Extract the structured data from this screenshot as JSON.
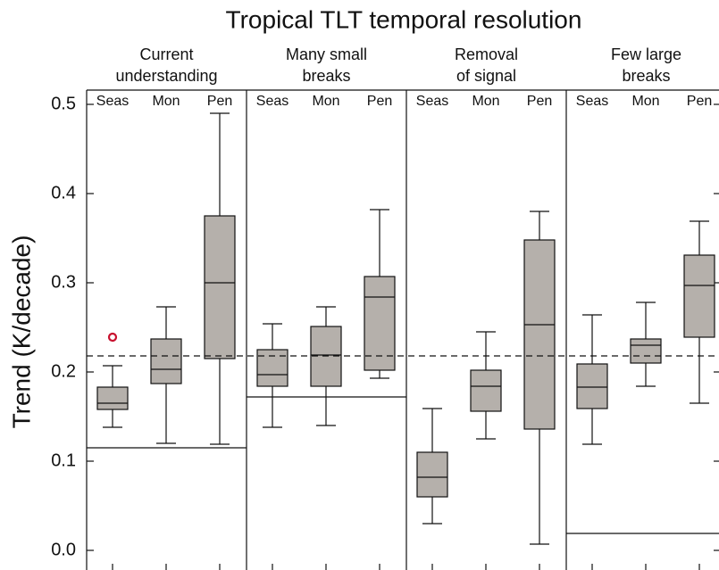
{
  "chart_data": {
    "type": "box",
    "title": "Tropical TLT temporal resolution",
    "ylabel": "Trend (K/decade)",
    "categories": [
      "Seas",
      "Mon",
      "Pen"
    ],
    "ylim": [
      -0.022,
      0.516
    ],
    "yticks": [
      {
        "value": 0,
        "label": "0.0"
      },
      0.1,
      0.2,
      0.3,
      0.4,
      0.5
    ],
    "box_color": "#b5b0ab",
    "outlier_color": "#c8102e",
    "dashed_line": 0.218,
    "panels": [
      {
        "title_lines": [
          "Current",
          "understanding"
        ],
        "reference": 0.115,
        "boxes": [
          {
            "low": 0.138,
            "q1": 0.158,
            "median": 0.165,
            "q3": 0.183,
            "high": 0.207,
            "outliers": [
              0.239
            ]
          },
          {
            "low": 0.12,
            "q1": 0.187,
            "median": 0.203,
            "q3": 0.237,
            "high": 0.273
          },
          {
            "low": 0.119,
            "q1": 0.215,
            "median": 0.3,
            "q3": 0.375,
            "high": 0.49
          }
        ]
      },
      {
        "title_lines": [
          "Many small",
          "breaks"
        ],
        "reference": 0.172,
        "boxes": [
          {
            "low": 0.138,
            "q1": 0.184,
            "median": 0.197,
            "q3": 0.225,
            "high": 0.254
          },
          {
            "low": 0.14,
            "q1": 0.184,
            "median": 0.219,
            "q3": 0.251,
            "high": 0.273
          },
          {
            "low": 0.193,
            "q1": 0.202,
            "median": 0.284,
            "q3": 0.307,
            "high": 0.382
          }
        ]
      },
      {
        "title_lines": [
          "Removal",
          "of signal"
        ],
        "reference": null,
        "boxes": [
          {
            "low": 0.03,
            "q1": 0.06,
            "median": 0.082,
            "q3": 0.11,
            "high": 0.159
          },
          {
            "low": 0.125,
            "q1": 0.156,
            "median": 0.184,
            "q3": 0.202,
            "high": 0.245
          },
          {
            "low": 0.007,
            "q1": 0.136,
            "median": 0.253,
            "q3": 0.348,
            "high": 0.38
          }
        ]
      },
      {
        "title_lines": [
          "Few large",
          "breaks"
        ],
        "reference": 0.019,
        "boxes": [
          {
            "low": 0.119,
            "q1": 0.159,
            "median": 0.183,
            "q3": 0.209,
            "high": 0.264
          },
          {
            "low": 0.184,
            "q1": 0.21,
            "median": 0.23,
            "q3": 0.237,
            "high": 0.278
          },
          {
            "low": 0.165,
            "q1": 0.239,
            "median": 0.297,
            "q3": 0.331,
            "high": 0.369
          }
        ]
      }
    ]
  }
}
